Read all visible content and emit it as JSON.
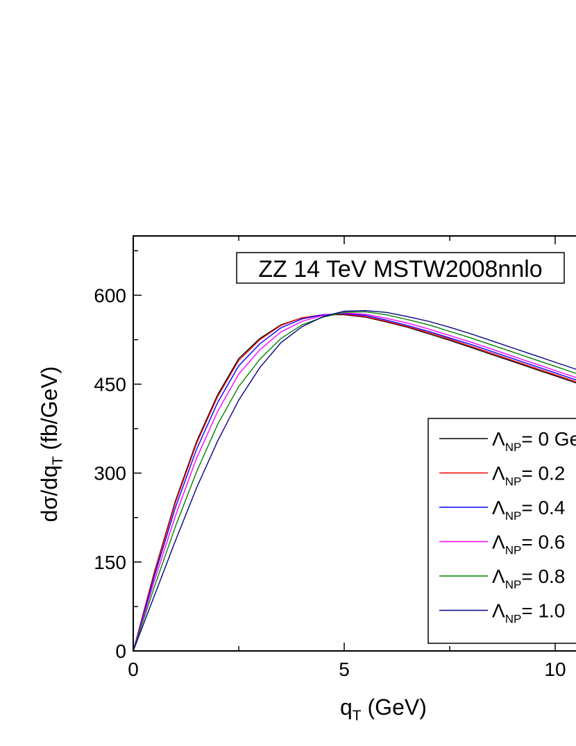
{
  "chart_data": {
    "type": "line",
    "title": "ZZ 14 TeV MSTW2008nnlo",
    "xlabel": "q",
    "xlabel_sub": "T",
    "xlabel_unit": " (GeV)",
    "ylabel": "dσ/dq",
    "ylabel_sub": "T",
    "ylabel_unit": " (fb/GeV)",
    "xlim": [
      0,
      10.5
    ],
    "ylim": [
      0,
      700
    ],
    "xticks": [
      0,
      5,
      10
    ],
    "yticks": [
      0,
      150,
      300,
      450,
      600
    ],
    "x": [
      0,
      0.5,
      1.0,
      1.5,
      2.0,
      2.5,
      3.0,
      3.5,
      4.0,
      4.5,
      5.0,
      5.5,
      6.0,
      6.5,
      7.0,
      7.5,
      8.0,
      8.5,
      9.0,
      9.5,
      10.0,
      10.5
    ],
    "legend_position": "right",
    "series": [
      {
        "name": "= 0 Ge",
        "legend_symbol": "Λ",
        "legend_sub": "NP",
        "color": "#000000",
        "values": [
          0,
          133,
          253,
          353,
          432,
          493,
          527,
          550,
          562,
          567,
          567,
          563,
          555,
          546,
          535,
          524,
          512,
          500,
          488,
          476,
          464,
          452
        ]
      },
      {
        "name": "= 0.2",
        "legend_symbol": "Λ",
        "legend_sub": "NP",
        "color": "#ff0000",
        "values": [
          0,
          131,
          250,
          350,
          429,
          490,
          525,
          549,
          562,
          567,
          568,
          564,
          556,
          547,
          537,
          526,
          514,
          502,
          490,
          478,
          466,
          454
        ]
      },
      {
        "name": "= 0.4",
        "legend_symbol": "Λ",
        "legend_sub": "NP",
        "color": "#0000ff",
        "values": [
          0,
          126,
          242,
          340,
          419,
          481,
          518,
          545,
          560,
          567,
          569,
          566,
          558,
          549,
          539,
          528,
          517,
          505,
          493,
          481,
          469,
          457
        ]
      },
      {
        "name": "= 0.6",
        "legend_symbol": "Λ",
        "legend_sub": "NP",
        "color": "#ff00ff",
        "values": [
          0,
          118,
          228,
          325,
          404,
          467,
          508,
          538,
          556,
          566,
          570,
          568,
          561,
          553,
          543,
          532,
          521,
          509,
          497,
          485,
          473,
          461
        ]
      },
      {
        "name": "= 0.8",
        "legend_symbol": "Λ",
        "legend_sub": "NP",
        "color": "#008000",
        "values": [
          0,
          108,
          210,
          302,
          382,
          446,
          492,
          527,
          550,
          563,
          571,
          572,
          567,
          559,
          550,
          539,
          528,
          516,
          504,
          492,
          480,
          468
        ]
      },
      {
        "name": "= 1.0",
        "legend_symbol": "Λ",
        "legend_sub": "NP",
        "color": "#000080",
        "values": [
          0,
          93,
          186,
          275,
          354,
          423,
          478,
          520,
          547,
          564,
          573,
          574,
          571,
          564,
          556,
          546,
          535,
          523,
          511,
          499,
          487,
          475
        ]
      }
    ]
  }
}
